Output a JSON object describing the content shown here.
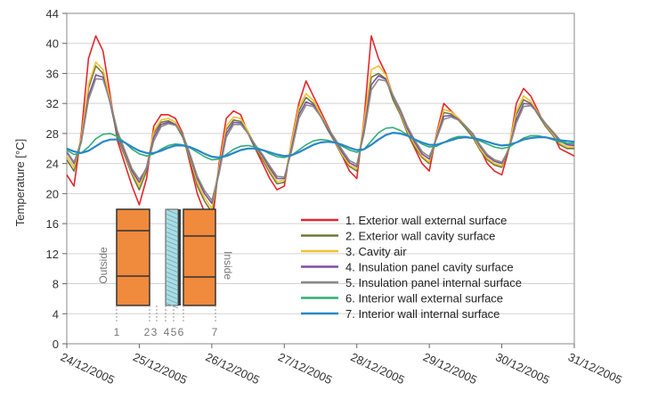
{
  "chart_data": {
    "type": "line",
    "ylabel": "Temperature  [°C]",
    "ylim": [
      0,
      44
    ],
    "yticks": [
      0,
      4,
      8,
      12,
      16,
      20,
      24,
      28,
      32,
      36,
      40,
      44
    ],
    "xlim": [
      "24/12/2005",
      "31/12/2005"
    ],
    "xticks": [
      "24/12/2005",
      "25/12/2005",
      "26/12/2005",
      "27/12/2005",
      "28/12/2005",
      "29/12/2005",
      "30/12/2005",
      "31/12/2005"
    ],
    "x_days": [
      0,
      0.1,
      0.2,
      0.3,
      0.4,
      0.5,
      0.6,
      0.7,
      0.8,
      0.9,
      1,
      1.1,
      1.2,
      1.3,
      1.4,
      1.5,
      1.6,
      1.7,
      1.8,
      1.9,
      2,
      2.1,
      2.2,
      2.3,
      2.4,
      2.5,
      2.6,
      2.7,
      2.8,
      2.9,
      3,
      3.1,
      3.2,
      3.3,
      3.4,
      3.5,
      3.6,
      3.7,
      3.8,
      3.9,
      4,
      4.1,
      4.2,
      4.3,
      4.4,
      4.5,
      4.6,
      4.7,
      4.8,
      4.9,
      5,
      5.1,
      5.2,
      5.3,
      5.4,
      5.5,
      5.6,
      5.7,
      5.8,
      5.9,
      6,
      6.1,
      6.2,
      6.3,
      6.4,
      6.5,
      6.6,
      6.7,
      6.8,
      6.9,
      7
    ],
    "series": [
      {
        "name": "1. Exterior wall external surface",
        "color": "#e3262b",
        "values": [
          22.5,
          21,
          28,
          38,
          41,
          39,
          33,
          27,
          24,
          21,
          18.5,
          22,
          29,
          30.5,
          30.5,
          30,
          28,
          24,
          20,
          17.5,
          15.5,
          24,
          30,
          31,
          30.5,
          28,
          26,
          24,
          22,
          20.5,
          21,
          27,
          32,
          35,
          33,
          31,
          29,
          27,
          25,
          23,
          22,
          30,
          41,
          38,
          36,
          33,
          31,
          28,
          26,
          24,
          23,
          28,
          32,
          31,
          30,
          29,
          28,
          26,
          24,
          23,
          22.5,
          26,
          32,
          34,
          33,
          31,
          29,
          28,
          26,
          25.5,
          25
        ]
      },
      {
        "name": "2. Exterior wall cavity surface",
        "color": "#6b7a3a",
        "values": [
          24.5,
          23,
          27,
          34,
          37,
          36,
          32,
          27.5,
          25,
          22.5,
          20.5,
          23,
          28,
          29.5,
          29.7,
          29.2,
          27.5,
          24.5,
          21,
          19,
          17.5,
          23,
          28.5,
          29.8,
          29.6,
          28,
          26,
          24.5,
          22.8,
          21.3,
          21.5,
          26.5,
          31,
          32.8,
          32,
          30.3,
          28.5,
          26.8,
          25,
          23.6,
          23,
          29,
          35.5,
          36,
          35.3,
          32.5,
          30.5,
          28,
          26.2,
          24.8,
          24,
          27.5,
          30.8,
          30.6,
          29.8,
          28.7,
          27.5,
          25.8,
          24.5,
          23.8,
          23.5,
          26,
          30.5,
          32.5,
          32,
          30.5,
          29,
          27.8,
          26.5,
          26,
          26
        ]
      },
      {
        "name": "3. Cavity air",
        "color": "#f2c12e",
        "values": [
          25,
          23.5,
          27.5,
          34.5,
          37.5,
          36.5,
          32.5,
          28,
          25.3,
          22.8,
          21,
          23.5,
          28.3,
          29.8,
          30,
          29.5,
          27.8,
          24.8,
          21.5,
          19.5,
          18,
          23.5,
          29,
          30.2,
          30,
          28.3,
          26.3,
          24.8,
          23.1,
          21.6,
          21.8,
          26.8,
          31.5,
          33.3,
          32.4,
          30.6,
          28.8,
          27,
          25.2,
          23.8,
          23.3,
          29.5,
          36.5,
          37,
          35.8,
          33,
          30.8,
          28.3,
          26.5,
          25,
          24.2,
          27.8,
          31.2,
          30.9,
          30.1,
          29,
          27.8,
          26,
          24.7,
          24,
          23.7,
          26.3,
          31,
          33,
          32.3,
          30.8,
          29.2,
          28,
          26.7,
          26.2,
          26.2
        ]
      },
      {
        "name": "4. Insulation panel cavity surface",
        "color": "#7b4fa3",
        "values": [
          25.5,
          24,
          27,
          33,
          35.8,
          35.5,
          32,
          28,
          25.5,
          23,
          21.5,
          23.5,
          27.5,
          29.2,
          29.5,
          29.2,
          27.8,
          25,
          22,
          20,
          18.7,
          23,
          28,
          29.5,
          29.4,
          28,
          26.3,
          25,
          23.4,
          22,
          22,
          26,
          30.5,
          32.2,
          31.8,
          30.3,
          28.7,
          27.1,
          25.5,
          24.1,
          23.6,
          28.5,
          34.5,
          35.7,
          35.2,
          33,
          31,
          28.6,
          26.8,
          25.3,
          24.6,
          27.5,
          30.3,
          30.4,
          29.9,
          29,
          27.9,
          26.3,
          25,
          24.3,
          24,
          26,
          29.8,
          32,
          31.9,
          30.7,
          29.3,
          28.2,
          27,
          26.5,
          26.4
        ]
      },
      {
        "name": "5. Insulation panel internal surface",
        "color": "#8a8a8a",
        "values": [
          25.6,
          24.2,
          26.8,
          32.5,
          35.3,
          35.2,
          32.2,
          28.3,
          25.8,
          23.3,
          21.9,
          23.3,
          27,
          28.9,
          29.3,
          29.1,
          27.9,
          25.3,
          22.3,
          20.4,
          19.1,
          22.6,
          27.5,
          29.2,
          29.2,
          28,
          26.5,
          25.2,
          23.7,
          22.3,
          22.2,
          25.6,
          30,
          31.8,
          31.6,
          30.3,
          28.8,
          27.3,
          25.8,
          24.4,
          23.9,
          28,
          33.8,
          35.2,
          35,
          33.1,
          31.2,
          28.9,
          27.1,
          25.6,
          24.9,
          27.3,
          29.9,
          30.2,
          29.8,
          29,
          28,
          26.5,
          25.2,
          24.5,
          24.2,
          25.9,
          29.4,
          31.6,
          31.7,
          30.7,
          29.4,
          28.3,
          27.2,
          26.7,
          26.6
        ]
      },
      {
        "name": "6. Interior wall external surface",
        "color": "#2fae77",
        "values": [
          25.8,
          25.2,
          25.4,
          26.2,
          27.3,
          27.9,
          28,
          27.6,
          26.8,
          25.9,
          25.3,
          25,
          25.3,
          25.9,
          26.4,
          26.6,
          26.5,
          26.1,
          25.5,
          24.9,
          24.5,
          24.6,
          25.2,
          25.9,
          26.3,
          26.4,
          26.2,
          25.8,
          25.3,
          24.9,
          24.8,
          25.1,
          25.8,
          26.5,
          27,
          27.2,
          27.1,
          26.8,
          26.3,
          25.8,
          25.5,
          25.9,
          27,
          28.1,
          28.7,
          28.8,
          28.4,
          27.8,
          27.2,
          26.6,
          26.2,
          26.3,
          26.8,
          27.3,
          27.6,
          27.6,
          27.4,
          27,
          26.6,
          26.2,
          26,
          26.2,
          26.8,
          27.4,
          27.7,
          27.7,
          27.5,
          27.2,
          26.9,
          26.7,
          26.7
        ]
      },
      {
        "name": "7. Interior wall internal surface",
        "color": "#2a86c7",
        "values": [
          26,
          25.6,
          25.4,
          25.7,
          26.3,
          26.9,
          27.2,
          27.2,
          26.8,
          26.2,
          25.7,
          25.4,
          25.4,
          25.7,
          26.1,
          26.4,
          26.4,
          26.2,
          25.8,
          25.3,
          24.9,
          24.8,
          25,
          25.4,
          25.8,
          26,
          26,
          25.8,
          25.5,
          25.2,
          25,
          25.1,
          25.5,
          26,
          26.5,
          26.8,
          26.9,
          26.8,
          26.5,
          26.1,
          25.8,
          25.9,
          26.5,
          27.2,
          27.8,
          28.1,
          28,
          27.7,
          27.2,
          26.8,
          26.5,
          26.5,
          26.8,
          27.1,
          27.4,
          27.5,
          27.4,
          27.2,
          26.9,
          26.6,
          26.4,
          26.5,
          26.8,
          27.2,
          27.4,
          27.5,
          27.5,
          27.3,
          27.1,
          27,
          26.9
        ]
      }
    ],
    "wall_diagram": {
      "outside_label": "Outside",
      "inside_label": "Inside",
      "layer_numbers": [
        "1",
        "2",
        "3",
        "4",
        "5",
        "6",
        "7"
      ],
      "brick_color": "#f08a3c"
    }
  }
}
